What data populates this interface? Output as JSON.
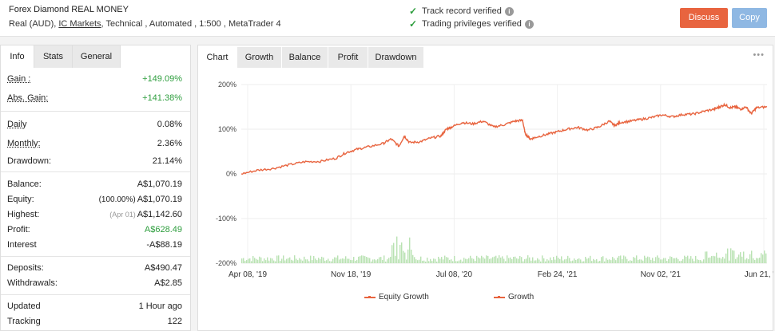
{
  "header": {
    "title": "Forex Diamond REAL MONEY",
    "sub_prefix": "Real (AUD),",
    "broker": "IC Markets",
    "sub_suffix": ", Technical , Automated , 1:500 , MetaTrader 4",
    "verify": [
      {
        "label": "Track record verified"
      },
      {
        "label": "Trading privileges verified"
      }
    ],
    "discuss_label": "Discuss",
    "copy_label": "Copy",
    "colors": {
      "discuss": "#e8643f",
      "copy": "#8fb8e3",
      "check": "#2e9e3e"
    }
  },
  "left_tabs": [
    "Info",
    "Stats",
    "General"
  ],
  "stats": {
    "gain": {
      "label": "Gain :",
      "value": "+149.09%"
    },
    "abs_gain": {
      "label": "Abs. Gain:",
      "value": "+141.38%"
    },
    "daily": {
      "label": "Daily",
      "value": "0.08%"
    },
    "monthly": {
      "label": "Monthly:",
      "value": "2.36%"
    },
    "drawdown": {
      "label": "Drawdown:",
      "value": "21.14%"
    },
    "balance": {
      "label": "Balance:",
      "value": "A$1,070.19"
    },
    "equity": {
      "label": "Equity:",
      "note": "(100.00%)",
      "value": "A$1,070.19"
    },
    "highest": {
      "label": "Highest:",
      "note": "(Apr 01)",
      "value": "A$1,142.60"
    },
    "profit": {
      "label": "Profit:",
      "value": "A$628.49"
    },
    "interest": {
      "label": "Interest",
      "value": "-A$88.19"
    },
    "deposits": {
      "label": "Deposits:",
      "value": "A$490.47"
    },
    "withdrawals": {
      "label": "Withdrawals:",
      "value": "A$2.85"
    },
    "updated": {
      "label": "Updated",
      "value": "1 Hour ago"
    },
    "tracking": {
      "label": "Tracking",
      "value": "122"
    }
  },
  "right_tabs": [
    "Chart",
    "Growth",
    "Balance",
    "Profit",
    "Drawdown"
  ],
  "more_label": "•••",
  "chart_data": {
    "type": "line",
    "yticks": [
      "200%",
      "100%",
      "0%",
      "-100%",
      "-200%"
    ],
    "ylim": [
      -200,
      200
    ],
    "xticks": [
      "Apr 08, '19",
      "Nov 18, '19",
      "Jul 08, '20",
      "Feb 24, '21",
      "Nov 02, '21",
      "Jun 21, '22"
    ],
    "series": [
      {
        "name": "Equity Growth",
        "color": "#e8643f"
      },
      {
        "name": "Growth",
        "color": "#e8643f",
        "x": [
          0,
          0.03,
          0.06,
          0.09,
          0.12,
          0.15,
          0.18,
          0.2,
          0.22,
          0.24,
          0.27,
          0.285,
          0.3,
          0.31,
          0.32,
          0.34,
          0.36,
          0.38,
          0.39,
          0.4,
          0.42,
          0.44,
          0.46,
          0.48,
          0.5,
          0.52,
          0.535,
          0.54,
          0.55,
          0.56,
          0.58,
          0.6,
          0.62,
          0.64,
          0.66,
          0.68,
          0.7,
          0.71,
          0.72,
          0.74,
          0.76,
          0.78,
          0.8,
          0.82,
          0.84,
          0.86,
          0.88,
          0.9,
          0.91,
          0.92,
          0.93,
          0.94,
          0.95,
          0.96,
          0.97,
          0.98,
          1.0
        ],
        "values": [
          0,
          8,
          12,
          20,
          27,
          28,
          35,
          48,
          55,
          60,
          68,
          78,
          62,
          85,
          70,
          72,
          80,
          85,
          100,
          105,
          115,
          112,
          118,
          105,
          110,
          118,
          120,
          90,
          78,
          82,
          88,
          94,
          100,
          104,
          98,
          105,
          118,
          108,
          115,
          118,
          122,
          126,
          132,
          128,
          133,
          134,
          140,
          145,
          150,
          155,
          148,
          150,
          145,
          150,
          135,
          148,
          150
        ]
      }
    ]
  }
}
